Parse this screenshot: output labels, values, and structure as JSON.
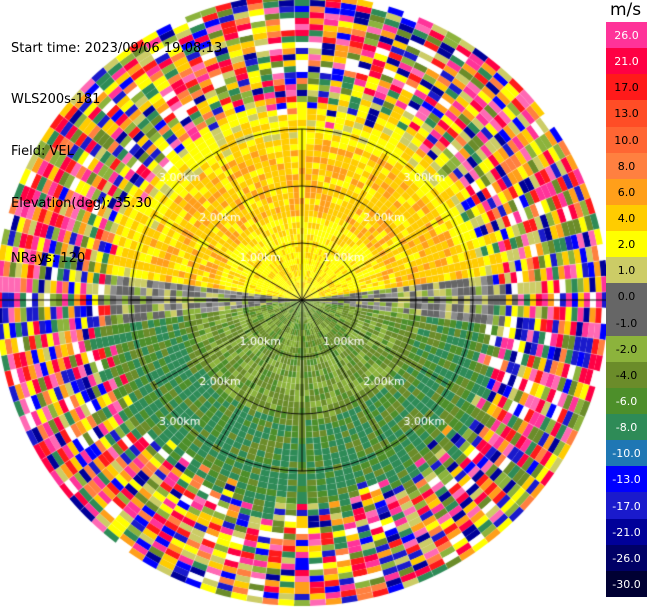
{
  "header": {
    "start_time": "Start time: 2023/09/06 19:08:13",
    "instrument": "WLS200s-181",
    "field": "Field: VEL",
    "elevation": "Elevation(deg): 35.30",
    "nrays": "NRays: 120"
  },
  "colorbar": {
    "unit": "m/s",
    "ticks": [
      "26.0",
      "21.0",
      "17.0",
      "13.0",
      "10.0",
      "8.0",
      "6.0",
      "4.0",
      "2.0",
      "1.0",
      "0.0",
      "-1.0",
      "-2.0",
      "-4.0",
      "-6.0",
      "-8.0",
      "-10.0",
      "-13.0",
      "-17.0",
      "-21.0",
      "-26.0",
      "-30.0"
    ],
    "colors": [
      "#ff3399",
      "#ff0044",
      "#ff1a1a",
      "#ff4d26",
      "#ff6633",
      "#ff8040",
      "#ff9f1a",
      "#ffcc00",
      "#ffff00",
      "#cccc66",
      "#666666",
      "#666666",
      "#8cb33c",
      "#6b8c2a",
      "#4d8f2a",
      "#2e8b57",
      "#1f77b4",
      "#0000ff",
      "#1a1acc",
      "#000099",
      "#000066",
      "#000033"
    ]
  },
  "chart_data": {
    "type": "ppi",
    "field": "VEL",
    "units": "m/s",
    "nrays": 120,
    "elevation_deg": 35.3,
    "range_rings_km": [
      1.0,
      2.0,
      3.0
    ],
    "ring_labels": [
      "1.00km",
      "2.00km",
      "3.00km"
    ],
    "colorbar_range": [
      -30.0,
      26.0
    ],
    "pattern": "positive (approaching/receding) velocities 0 to 6 m/s in the northern half, negative velocities -1 to -8 m/s in the southern half, noisy multi-color returns beyond about 3.2 km"
  }
}
